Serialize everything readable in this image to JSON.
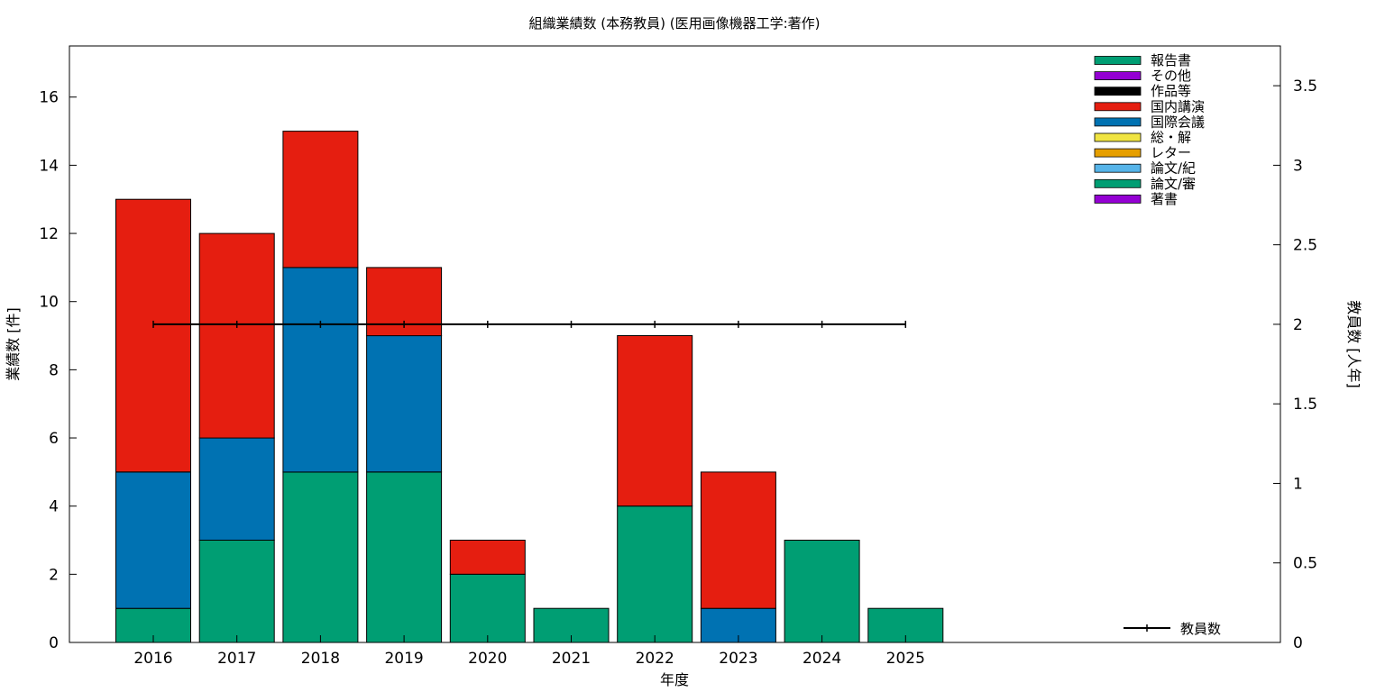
{
  "chart_data": {
    "type": "bar",
    "stacked": true,
    "title": "組織業績数 (本務教員) (医用画像機器工学:著作)",
    "xlabel": "年度",
    "ylabel": "業績数 [件]",
    "y2label": "教員数 [人年]",
    "categories": [
      "2016",
      "2017",
      "2018",
      "2019",
      "2020",
      "2021",
      "2022",
      "2023",
      "2024",
      "2025"
    ],
    "ylim": [
      0,
      17.5
    ],
    "y2lim": [
      0,
      3.75
    ],
    "yticks": [
      "0",
      "2",
      "4",
      "6",
      "8",
      "10",
      "12",
      "14",
      "16"
    ],
    "y2ticks": [
      "0",
      "0.5",
      "1",
      "1.5",
      "2",
      "2.5",
      "3",
      "3.5"
    ],
    "grid": false,
    "legend_position": "top-right",
    "series": [
      {
        "name": "著書",
        "color": "#9400d3",
        "values": [
          0,
          0,
          0,
          0,
          0,
          0,
          0,
          0,
          0,
          0
        ]
      },
      {
        "name": "論文/審",
        "color": "#009e73",
        "values": [
          1,
          3,
          5,
          5,
          2,
          1,
          4,
          0,
          3,
          1
        ]
      },
      {
        "name": "論文/紀",
        "color": "#56b4e9",
        "values": [
          0,
          0,
          0,
          0,
          0,
          0,
          0,
          0,
          0,
          0
        ]
      },
      {
        "name": "レター",
        "color": "#e69f00",
        "values": [
          0,
          0,
          0,
          0,
          0,
          0,
          0,
          0,
          0,
          0
        ]
      },
      {
        "name": "総・解",
        "color": "#f0e442",
        "values": [
          0,
          0,
          0,
          0,
          0,
          0,
          0,
          0,
          0,
          0
        ]
      },
      {
        "name": "国際会議",
        "color": "#0072b2",
        "values": [
          4,
          3,
          6,
          4,
          0,
          0,
          0,
          1,
          0,
          0
        ]
      },
      {
        "name": "国内講演",
        "color": "#e51e10",
        "values": [
          8,
          6,
          4,
          2,
          1,
          0,
          5,
          4,
          0,
          0
        ]
      },
      {
        "name": "作品等",
        "color": "#000000",
        "values": [
          0,
          0,
          0,
          0,
          0,
          0,
          0,
          0,
          0,
          0
        ]
      },
      {
        "name": "その他",
        "color": "#9400d3",
        "values": [
          0,
          0,
          0,
          0,
          0,
          0,
          0,
          0,
          0,
          0
        ]
      },
      {
        "name": "報告書",
        "color": "#009e73",
        "values": [
          0,
          0,
          0,
          0,
          0,
          0,
          0,
          0,
          0,
          0
        ]
      }
    ],
    "line_series": {
      "name": "教員数",
      "color": "#000000",
      "axis": "right",
      "values": [
        2,
        2,
        2,
        2,
        2,
        2,
        2,
        2,
        2,
        2
      ]
    }
  }
}
